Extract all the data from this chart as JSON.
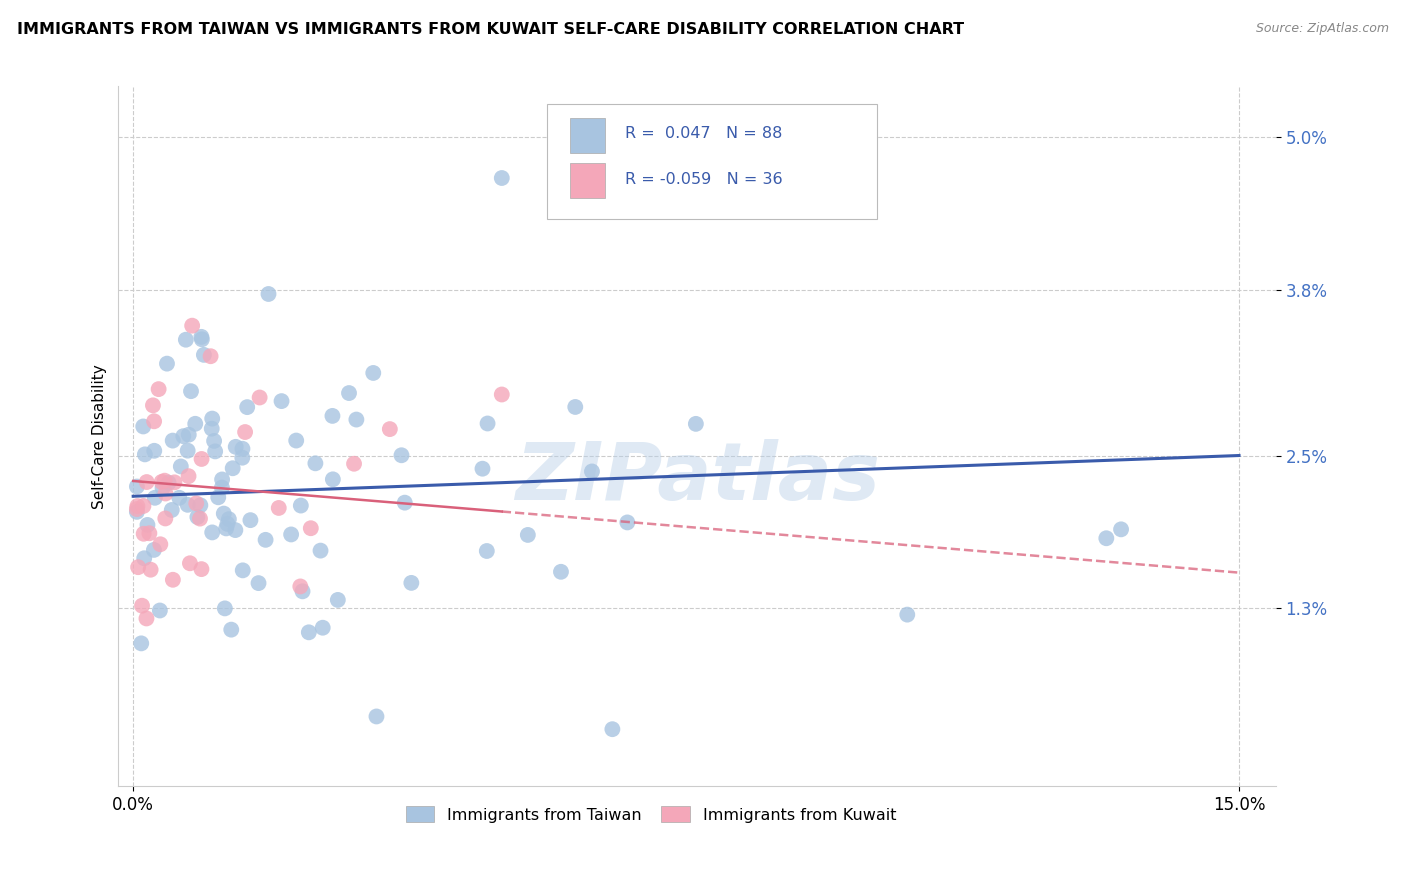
{
  "title": "IMMIGRANTS FROM TAIWAN VS IMMIGRANTS FROM KUWAIT SELF-CARE DISABILITY CORRELATION CHART",
  "source": "Source: ZipAtlas.com",
  "ylabel_label": "Self-Care Disability",
  "legend_label1": "Immigrants from Taiwan",
  "legend_label2": "Immigrants from Kuwait",
  "R1": 0.047,
  "N1": 88,
  "R2": -0.059,
  "N2": 36,
  "color_taiwan": "#a8c4e0",
  "color_kuwait": "#f4a7b9",
  "line_color_taiwan": "#3a5bab",
  "line_color_kuwait": "#d9607a",
  "ytick_positions": [
    1.3,
    2.5,
    3.8,
    5.0
  ],
  "ytick_labels": [
    "1.3%",
    "2.5%",
    "3.8%",
    "5.0%"
  ],
  "xtick_positions": [
    0.0,
    15.0
  ],
  "xtick_labels": [
    "0.0%",
    "15.0%"
  ],
  "watermark": "ZIPatlas",
  "background_color": "#ffffff",
  "grid_color": "#cccccc",
  "xlim": [
    -0.2,
    15.5
  ],
  "ylim": [
    -0.1,
    5.4
  ]
}
